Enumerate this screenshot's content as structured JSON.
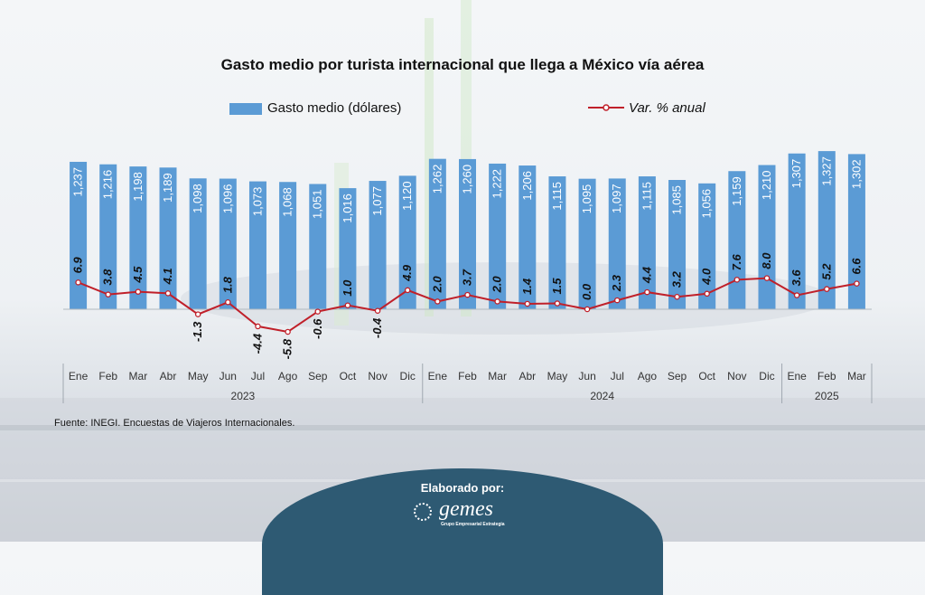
{
  "chart_data": {
    "type": "bar",
    "title": "Gasto medio por turista internacional que llega a México vía aérea",
    "legend": {
      "bar_label": "Gasto medio (dólares)",
      "line_label": "Var. % anual",
      "placement": "top"
    },
    "categories": [
      "Ene",
      "Feb",
      "Mar",
      "Abr",
      "May",
      "Jun",
      "Jul",
      "Ago",
      "Sep",
      "Oct",
      "Nov",
      "Dic",
      "Ene",
      "Feb",
      "Mar",
      "Abr",
      "May",
      "Jun",
      "Jul",
      "Ago",
      "Sep",
      "Oct",
      "Nov",
      "Dic",
      "Ene",
      "Feb",
      "Mar"
    ],
    "year_groups": [
      {
        "label": "2023",
        "count": 12
      },
      {
        "label": "2024",
        "count": 12
      },
      {
        "label": "2025",
        "count": 3
      }
    ],
    "series": [
      {
        "name": "Gasto medio (dólares)",
        "type": "bar",
        "color": "#5b9bd5",
        "values": [
          1237,
          1216,
          1198,
          1189,
          1098,
          1096,
          1073,
          1068,
          1051,
          1016,
          1077,
          1120,
          1262,
          1260,
          1222,
          1206,
          1115,
          1095,
          1097,
          1115,
          1085,
          1056,
          1159,
          1210,
          1307,
          1327,
          1302
        ],
        "labels": [
          "1,237",
          "1,216",
          "1,198",
          "1,189",
          "1,098",
          "1,096",
          "1,073",
          "1,068",
          "1,051",
          "1,016",
          "1,077",
          "1,120",
          "1,262",
          "1,260",
          "1,222",
          "1,206",
          "1,115",
          "1,095",
          "1,097",
          "1,115",
          "1,085",
          "1,056",
          "1,159",
          "1,210",
          "1,307",
          "1,327",
          "1,302"
        ]
      },
      {
        "name": "Var. % anual",
        "type": "line",
        "color": "#c0202a",
        "values": [
          6.9,
          3.8,
          4.5,
          4.1,
          -1.3,
          1.8,
          -4.4,
          -5.8,
          -0.6,
          1.0,
          -0.4,
          4.9,
          2.0,
          3.7,
          2.0,
          1.4,
          1.5,
          0.0,
          2.3,
          4.4,
          3.2,
          4.0,
          7.6,
          8.0,
          3.6,
          5.2,
          6.6
        ],
        "labels": [
          "6.9",
          "3.8",
          "4.5",
          "4.1",
          "-1.3",
          "1.8",
          "-4.4",
          "-5.8",
          "-0.6",
          "1.0",
          "-0.4",
          "4.9",
          "2.0",
          "3.7",
          "2.0",
          "1.4",
          "1.5",
          "0.0",
          "2.3",
          "4.4",
          "3.2",
          "4.0",
          "7.6",
          "8.0",
          "3.6",
          "5.2",
          "6.6"
        ]
      }
    ],
    "grid": false
  },
  "source": "Fuente: INEGI. Encuestas de Viajeros Internacionales.",
  "footer": {
    "label": "Elaborado por:",
    "logo_word": "gemes",
    "logo_sub": "Grupo Empresarial Estrategia"
  }
}
